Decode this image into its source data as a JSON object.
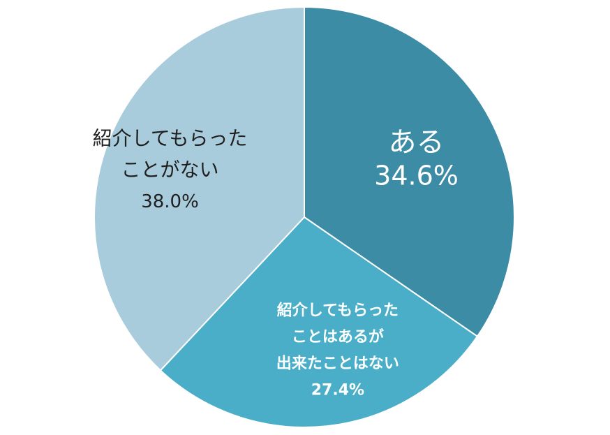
{
  "chart_data": {
    "type": "pie",
    "title": "",
    "start": "top",
    "direction": "clockwise",
    "slices": [
      {
        "name": "ある",
        "value": 34.6,
        "value_label": "34.6%",
        "label_lines": [
          "ある"
        ],
        "color": "#3d8ca6",
        "text_color": "#ffffff"
      },
      {
        "name": "紹介してもらったことはあるが出来たことはない",
        "value": 27.4,
        "value_label": "27.4%",
        "label_lines": [
          "紹介してもらった",
          "ことはあるが",
          "出来たことはない"
        ],
        "color": "#4aaec8",
        "text_color": "#ffffff"
      },
      {
        "name": "紹介してもらったことがない",
        "value": 38.0,
        "value_label": "38.0%",
        "label_lines": [
          "紹介してもらった",
          "ことがない"
        ],
        "color": "#a8ccdb",
        "text_color": "#1f1f1f"
      }
    ]
  }
}
